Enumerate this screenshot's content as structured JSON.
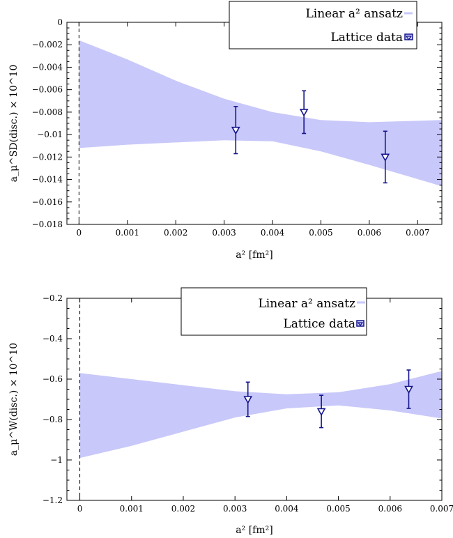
{
  "colors": {
    "band": "#c8c8fa",
    "data": "#14148c",
    "axis": "#000000"
  },
  "chart_data": [
    {
      "type": "line",
      "xlabel": "a² [fm²]",
      "ylabel": "a_μ^SD(disc.) × 10^10",
      "xlim": [
        0,
        0.0075
      ],
      "ylim": [
        -0.018,
        0
      ],
      "xticks": [
        0,
        0.001,
        0.002,
        0.003,
        0.004,
        0.005,
        0.006,
        0.007
      ],
      "yticks": [
        0,
        -0.002,
        -0.004,
        -0.006,
        -0.008,
        -0.01,
        -0.012,
        -0.014,
        -0.016,
        -0.018
      ],
      "xtick_labels": [
        "0",
        "0.001",
        "0.002",
        "0.003",
        "0.004",
        "0.005",
        "0.006",
        "0.007"
      ],
      "ytick_labels": [
        "0",
        "−0.002",
        "−0.004",
        "−0.006",
        "−0.008",
        "−0.01",
        "−0.012",
        "−0.014",
        "−0.016",
        "−0.018"
      ],
      "legend": {
        "placement": "top-right",
        "entries": [
          "Linear a² ansatz",
          "Lattice data"
        ]
      },
      "band": {
        "name": "Linear a² ansatz",
        "x": [
          0,
          0.001,
          0.002,
          0.003,
          0.004,
          0.005,
          0.006,
          0.0075
        ],
        "upper": [
          -0.0016,
          -0.0033,
          -0.0052,
          -0.0068,
          -0.008,
          -0.0087,
          -0.0089,
          -0.0087
        ],
        "lower": [
          -0.0112,
          -0.0109,
          -0.0107,
          -0.0105,
          -0.0106,
          -0.0115,
          -0.0127,
          -0.0146
        ]
      },
      "series": [
        {
          "name": "Lattice data",
          "x": [
            0.00324,
            0.00465,
            0.00633
          ],
          "y": [
            -0.0096,
            -0.008,
            -0.012
          ],
          "yerr": [
            0.0021,
            0.0019,
            0.0023
          ]
        }
      ]
    },
    {
      "type": "line",
      "xlabel": "a² [fm²]",
      "ylabel": "a_μ^W(disc.) × 10^10",
      "xlim": [
        0,
        0.007
      ],
      "ylim": [
        -1.2,
        -0.2
      ],
      "xticks": [
        0,
        0.001,
        0.002,
        0.003,
        0.004,
        0.005,
        0.006,
        0.007
      ],
      "yticks": [
        -0.2,
        -0.4,
        -0.6,
        -0.8,
        -1,
        -1.2
      ],
      "xtick_labels": [
        "0",
        "0.001",
        "0.002",
        "0.003",
        "0.004",
        "0.005",
        "0.006",
        "0.007"
      ],
      "ytick_labels": [
        "−0.2",
        "−0.4",
        "−0.6",
        "−0.8",
        "−1",
        "−1.2"
      ],
      "legend": {
        "placement": "top-right",
        "entries": [
          "Linear a² ansatz",
          "Lattice data"
        ]
      },
      "band": {
        "name": "Linear a² ansatz",
        "x": [
          0,
          0.001,
          0.002,
          0.003,
          0.004,
          0.005,
          0.006,
          0.007
        ],
        "upper": [
          -0.57,
          -0.6,
          -0.63,
          -0.66,
          -0.675,
          -0.665,
          -0.625,
          -0.56
        ],
        "lower": [
          -0.99,
          -0.93,
          -0.86,
          -0.79,
          -0.745,
          -0.73,
          -0.755,
          -0.795
        ]
      },
      "series": [
        {
          "name": "Lattice data",
          "x": [
            0.00325,
            0.00467,
            0.00636
          ],
          "y": [
            -0.7,
            -0.76,
            -0.65
          ],
          "yerr": [
            0.085,
            0.08,
            0.095
          ]
        }
      ]
    }
  ]
}
